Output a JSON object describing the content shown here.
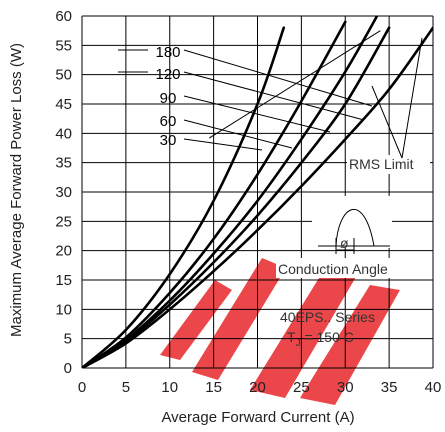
{
  "chart_data": {
    "type": "line",
    "xlabel": "Average Forward Current (A)",
    "ylabel": "Maximum Average Forward Power Loss (W)",
    "xlim": [
      0,
      40
    ],
    "ylim": [
      0,
      60
    ],
    "xticks": [
      0,
      5,
      10,
      15,
      20,
      25,
      30,
      35,
      40
    ],
    "yticks": [
      0,
      5,
      10,
      15,
      20,
      25,
      30,
      35,
      40,
      45,
      50,
      55,
      60
    ],
    "grid": true,
    "series": [
      {
        "name": "180",
        "x": [
          0,
          5,
          10,
          15,
          20,
          25,
          30,
          35,
          40
        ],
        "y": [
          0,
          4.2,
          10.0,
          16.5,
          23.5,
          31.0,
          39.0,
          47.5,
          58.0
        ]
      },
      {
        "name": "120",
        "x": [
          0,
          5,
          10,
          15,
          20,
          25,
          30,
          35
        ],
        "y": [
          0,
          4.5,
          10.8,
          18.0,
          26.0,
          35.0,
          45.0,
          58.0
        ]
      },
      {
        "name": "90",
        "x": [
          0,
          5,
          10,
          15,
          20,
          25,
          30,
          34
        ],
        "y": [
          0,
          4.8,
          11.5,
          19.5,
          28.5,
          39.0,
          50.5,
          61.0
        ]
      },
      {
        "name": "60",
        "x": [
          0,
          5,
          10,
          15,
          20,
          25,
          30
        ],
        "y": [
          0,
          5.2,
          12.8,
          22.0,
          33.0,
          45.5,
          59.0
        ]
      },
      {
        "name": "30",
        "x": [
          0,
          5,
          10,
          15,
          20,
          23
        ],
        "y": [
          0,
          6.5,
          16.0,
          28.5,
          45.0,
          58.0
        ]
      }
    ],
    "rms_limit": {
      "x": [
        14.5,
        34.0
      ],
      "y": [
        39.2,
        57.5
      ]
    },
    "annotations": {
      "rms_limit": "RMS Limit",
      "conduction_angle": "Conduction Angle",
      "phi": "ø",
      "series_line1": "40EPS.. Series",
      "series_line2_prefix": "T",
      "series_line2_sub": "J",
      "series_line2_suffix": " = 150 C"
    },
    "colors": {
      "line": "#000000",
      "watermark": "#e8262a"
    }
  }
}
